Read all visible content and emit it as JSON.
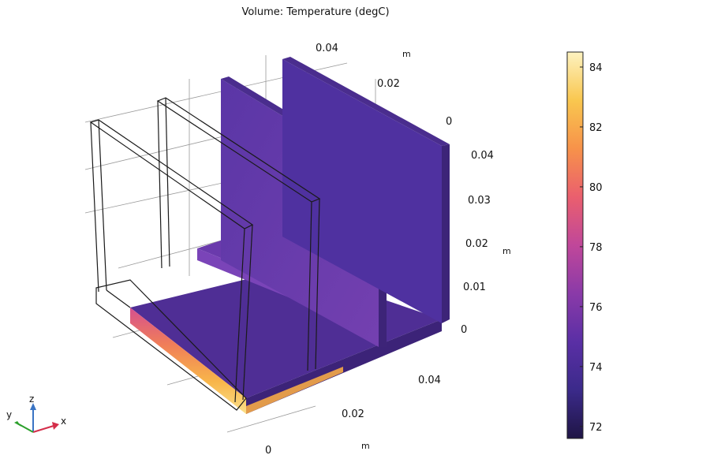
{
  "plot": {
    "title": "Volume: Temperature (degC)"
  },
  "axes": {
    "x_unit": "m",
    "y_unit": "m",
    "z_unit": "m",
    "x_ticks": [
      "0",
      "0.02",
      "0.04"
    ],
    "y_ticks": [
      "0.04",
      "0.02",
      "0"
    ],
    "z_ticks": [
      "0.04",
      "0.03",
      "0.02",
      "0.01",
      "0"
    ]
  },
  "triad": {
    "x_label": "x",
    "y_label": "y",
    "z_label": "z"
  },
  "chart_data": {
    "type": "heatmap",
    "title": "Volume: Temperature (degC)",
    "colorbar": {
      "min": 71.6,
      "max": 84.5,
      "ticks": [
        72,
        74,
        76,
        78,
        80,
        82,
        84
      ],
      "colors": [
        "#1f1545",
        "#3b2a8a",
        "#5a2fa5",
        "#8a3aa8",
        "#c0479a",
        "#ea5f6e",
        "#f7924a",
        "#f9c74f",
        "#fdf2c0"
      ]
    },
    "fin_temperature_approx": 73,
    "base_plate_temperature_range": [
      72,
      84
    ]
  },
  "colors": {
    "fin_face": "#5f3aaa",
    "fin_side": "#3d2478",
    "fin_top": "#4a2d8e",
    "base_top": "#4f2e95",
    "base_front": "#3c2378",
    "wire": "#1a1a1a",
    "grid": "#9a9a9a"
  }
}
